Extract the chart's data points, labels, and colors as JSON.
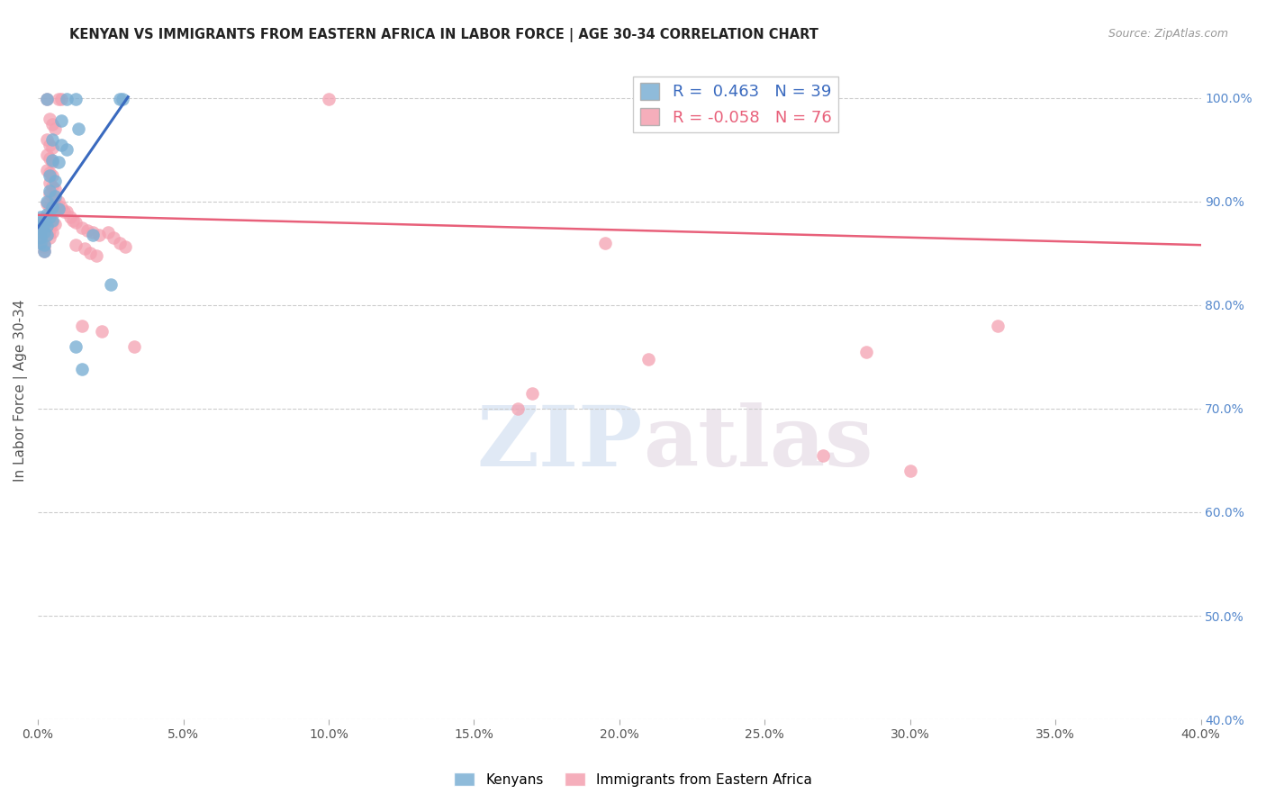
{
  "title": "KENYAN VS IMMIGRANTS FROM EASTERN AFRICA IN LABOR FORCE | AGE 30-34 CORRELATION CHART",
  "source": "Source: ZipAtlas.com",
  "ylabel": "In Labor Force | Age 30-34",
  "right_ytick_labels": [
    "40.0%",
    "50.0%",
    "60.0%",
    "70.0%",
    "80.0%",
    "90.0%",
    "100.0%"
  ],
  "right_ytick_values": [
    0.4,
    0.5,
    0.6,
    0.7,
    0.8,
    0.9,
    1.0
  ],
  "xlim": [
    0.0,
    0.4
  ],
  "ylim": [
    0.4,
    1.035
  ],
  "legend_kenyans": "Kenyans",
  "legend_immigrants": "Immigrants from Eastern Africa",
  "R_kenyans": 0.463,
  "N_kenyans": 39,
  "R_immigrants": -0.058,
  "N_immigrants": 76,
  "kenyan_color": "#7bafd4",
  "immigrant_color": "#f4a0b0",
  "kenyan_line_color": "#3a6abf",
  "immigrant_line_color": "#e8607a",
  "blue_dots": [
    [
      0.003,
      0.999
    ],
    [
      0.01,
      0.999
    ],
    [
      0.013,
      0.999
    ],
    [
      0.028,
      0.999
    ],
    [
      0.029,
      0.999
    ],
    [
      0.008,
      0.978
    ],
    [
      0.014,
      0.97
    ],
    [
      0.005,
      0.96
    ],
    [
      0.008,
      0.955
    ],
    [
      0.01,
      0.95
    ],
    [
      0.005,
      0.94
    ],
    [
      0.007,
      0.938
    ],
    [
      0.004,
      0.925
    ],
    [
      0.006,
      0.92
    ],
    [
      0.004,
      0.91
    ],
    [
      0.006,
      0.905
    ],
    [
      0.003,
      0.9
    ],
    [
      0.005,
      0.895
    ],
    [
      0.007,
      0.893
    ],
    [
      0.003,
      0.888
    ],
    [
      0.004,
      0.885
    ],
    [
      0.005,
      0.882
    ],
    [
      0.002,
      0.882
    ],
    [
      0.002,
      0.878
    ],
    [
      0.003,
      0.876
    ],
    [
      0.002,
      0.87
    ],
    [
      0.003,
      0.868
    ],
    [
      0.001,
      0.885
    ],
    [
      0.001,
      0.88
    ],
    [
      0.001,
      0.875
    ],
    [
      0.001,
      0.87
    ],
    [
      0.001,
      0.865
    ],
    [
      0.001,
      0.86
    ],
    [
      0.002,
      0.858
    ],
    [
      0.002,
      0.852
    ],
    [
      0.013,
      0.76
    ],
    [
      0.015,
      0.738
    ],
    [
      0.019,
      0.868
    ],
    [
      0.025,
      0.82
    ]
  ],
  "pink_dots": [
    [
      0.1,
      0.999
    ],
    [
      0.003,
      0.999
    ],
    [
      0.007,
      0.999
    ],
    [
      0.008,
      0.999
    ],
    [
      0.004,
      0.98
    ],
    [
      0.005,
      0.975
    ],
    [
      0.006,
      0.97
    ],
    [
      0.003,
      0.96
    ],
    [
      0.004,
      0.955
    ],
    [
      0.005,
      0.952
    ],
    [
      0.003,
      0.945
    ],
    [
      0.004,
      0.942
    ],
    [
      0.005,
      0.938
    ],
    [
      0.003,
      0.93
    ],
    [
      0.004,
      0.928
    ],
    [
      0.005,
      0.925
    ],
    [
      0.004,
      0.918
    ],
    [
      0.005,
      0.915
    ],
    [
      0.006,
      0.912
    ],
    [
      0.004,
      0.908
    ],
    [
      0.005,
      0.905
    ],
    [
      0.006,
      0.902
    ],
    [
      0.003,
      0.898
    ],
    [
      0.004,
      0.895
    ],
    [
      0.005,
      0.892
    ],
    [
      0.006,
      0.89
    ],
    [
      0.003,
      0.885
    ],
    [
      0.004,
      0.882
    ],
    [
      0.005,
      0.88
    ],
    [
      0.006,
      0.878
    ],
    [
      0.002,
      0.878
    ],
    [
      0.003,
      0.875
    ],
    [
      0.004,
      0.872
    ],
    [
      0.005,
      0.87
    ],
    [
      0.002,
      0.87
    ],
    [
      0.003,
      0.868
    ],
    [
      0.004,
      0.865
    ],
    [
      0.001,
      0.882
    ],
    [
      0.001,
      0.878
    ],
    [
      0.001,
      0.874
    ],
    [
      0.001,
      0.87
    ],
    [
      0.001,
      0.866
    ],
    [
      0.001,
      0.862
    ],
    [
      0.002,
      0.86
    ],
    [
      0.002,
      0.856
    ],
    [
      0.002,
      0.852
    ],
    [
      0.007,
      0.9
    ],
    [
      0.008,
      0.895
    ],
    [
      0.009,
      0.89
    ],
    [
      0.01,
      0.89
    ],
    [
      0.011,
      0.885
    ],
    [
      0.012,
      0.882
    ],
    [
      0.013,
      0.88
    ],
    [
      0.015,
      0.875
    ],
    [
      0.017,
      0.872
    ],
    [
      0.019,
      0.87
    ],
    [
      0.021,
      0.868
    ],
    [
      0.013,
      0.858
    ],
    [
      0.016,
      0.855
    ],
    [
      0.018,
      0.85
    ],
    [
      0.02,
      0.848
    ],
    [
      0.024,
      0.87
    ],
    [
      0.026,
      0.865
    ],
    [
      0.028,
      0.86
    ],
    [
      0.03,
      0.856
    ],
    [
      0.015,
      0.78
    ],
    [
      0.022,
      0.775
    ],
    [
      0.033,
      0.76
    ],
    [
      0.195,
      0.86
    ],
    [
      0.21,
      0.748
    ],
    [
      0.285,
      0.755
    ],
    [
      0.33,
      0.78
    ],
    [
      0.27,
      0.655
    ],
    [
      0.3,
      0.64
    ],
    [
      0.165,
      0.7
    ],
    [
      0.17,
      0.715
    ]
  ],
  "watermark_zip": "ZIP",
  "watermark_atlas": "atlas",
  "background_color": "#ffffff",
  "grid_color": "#cccccc",
  "xtick_labels": [
    "0.0%",
    "5.0%",
    "10.0%",
    "15.0%",
    "20.0%",
    "25.0%",
    "30.0%",
    "35.0%",
    "40.0%"
  ],
  "xtick_values": [
    0.0,
    0.05,
    0.1,
    0.15,
    0.2,
    0.25,
    0.3,
    0.35,
    0.4
  ],
  "blue_line_x": [
    0.0,
    0.031
  ],
  "blue_line_y": [
    0.875,
    1.001
  ],
  "pink_line_x": [
    0.0,
    0.4
  ],
  "pink_line_y": [
    0.887,
    0.858
  ]
}
